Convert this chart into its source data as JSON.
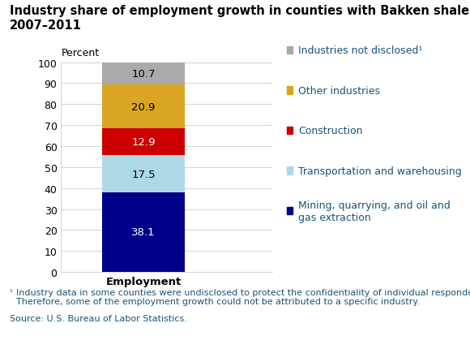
{
  "title_line1": "Industry share of employment growth in counties with Bakken shale oil wells,",
  "title_line2": "2007–2011",
  "ylabel": "Percent",
  "xlabel": "Employment",
  "segments": [
    {
      "label": "Mining, quarrying, and oil and\ngas extraction",
      "value": 38.1,
      "color": "#00008B",
      "text_color": "#FFFFFF"
    },
    {
      "label": "Transportation and warehousing",
      "value": 17.5,
      "color": "#ADD8E6",
      "text_color": "#000000"
    },
    {
      "label": "Construction",
      "value": 12.9,
      "color": "#CC0000",
      "text_color": "#FFFFFF"
    },
    {
      "label": "Other industries",
      "value": 20.9,
      "color": "#DAA520",
      "text_color": "#000000"
    },
    {
      "label": "Industries not disclosed¹",
      "value": 10.7,
      "color": "#AAAAAA",
      "text_color": "#000000"
    }
  ],
  "ylim": [
    0,
    100
  ],
  "yticks": [
    0,
    10,
    20,
    30,
    40,
    50,
    60,
    70,
    80,
    90,
    100
  ],
  "footnote_superscript": "¹",
  "footnote_main": "Industry data in some counties were undisclosed to protect the confidentiality of individual respondents.\nTherefore, some of the employment growth could not be attributed to a specific industry.",
  "source": "Source: U.S. Bureau of Labor Statistics.",
  "bar_width": 0.35,
  "title_fontsize": 10.5,
  "tick_fontsize": 9,
  "legend_fontsize": 9,
  "bar_label_fontsize": 9.5,
  "footnote_fontsize": 8,
  "legend_text_color": "#1A5276",
  "footnote_color": "#1A5276"
}
